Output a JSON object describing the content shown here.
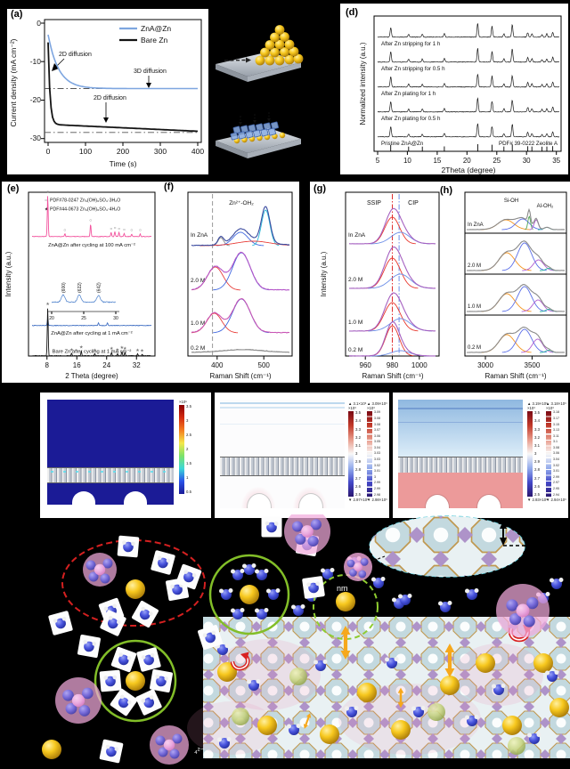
{
  "figure": {
    "panels": {
      "a": {
        "tag": "(a)",
        "ylabel": "Current density (mA cm⁻²)",
        "xlabel": "Time (s)",
        "yticks": [
          "0",
          "-10",
          "-20",
          "-30"
        ],
        "xticks": [
          "0",
          "100",
          "200",
          "300",
          "400"
        ],
        "ann_2d_top": "2D diffusion",
        "ann_3d": "3D diffusion",
        "ann_2d_bottom": "2D diffusion"
      },
      "d": {
        "tag": "(d)",
        "ylabel": "Normalized intensity (a.u.)",
        "xlabel": "2Theta (degree)",
        "xticks": [
          "5",
          "10",
          "15",
          "20",
          "25",
          "30",
          "35"
        ]
      },
      "e": {
        "tag": "(e)",
        "ylabel": "Intensity (a.u.)",
        "xlabel": "2 Theta (degree)",
        "xticks": [
          "8",
          "16",
          "24",
          "32"
        ],
        "legend1_marker": "○",
        "legend1": "PDF#78-0247 Zn₄(OH)₆SO₄·3H₂O",
        "legend2_marker": "★",
        "legend2": "PDF#44-0673 Zn₄(OH)₆SO₄·4H₂O"
      },
      "f": {
        "tag": "(f)",
        "top_label": "Zn²⁺-OH₂",
        "xticks": [
          "400",
          "500"
        ],
        "xlabel": "Raman Shift (cm⁻¹)"
      },
      "g": {
        "tag": "(g)",
        "label_ssip": "SSIP",
        "label_cip": "CIP",
        "ylabel": "Intensity (a.u.)",
        "xticks": [
          "960",
          "980",
          "1000"
        ],
        "xlabel": "Raman Shift (cm⁻¹)"
      },
      "h": {
        "tag": "(h)",
        "label_si": "Si-OH",
        "label_al": "Al-OH₂",
        "xticks": [
          "3000",
          "3500"
        ],
        "xlabel": "Raman Shift (cm⁻¹)"
      }
    },
    "simulations": [
      {
        "colorbars": [
          {
            "unit": "×10⁵",
            "ticks": [
              "3.5",
              "3",
              "2.5",
              "2",
              "1.5",
              "1",
              "0.5"
            ]
          }
        ]
      },
      {
        "colorbars": [
          {
            "max": "▲ 3.1×10³",
            "unit": "×10³",
            "ticks": [
              "3.5",
              "3.4",
              "3.3",
              "3.2",
              "3.1",
              "3",
              "2.9",
              "2.8",
              "2.7",
              "2.6",
              "2.5"
            ],
            "min": "▼ 2.97×10³"
          },
          {
            "max": "▲ 3.09×10³",
            "unit": "×10³",
            "ticks": [
              "3.09",
              "3.08",
              "3.08",
              "3.07",
              "3.06",
              "3.05",
              "3.04",
              "3.03",
              "3.03",
              "3.02",
              "3.01",
              "3",
              "2.99",
              "2.99",
              "2.98"
            ],
            "min": "▼ 2.98×10³"
          }
        ]
      },
      {
        "colorbars": [
          {
            "max": "▲ 3.19×10³",
            "unit": "×10³",
            "ticks": [
              "3.5",
              "3.4",
              "3.3",
              "3.2",
              "3.1",
              "3",
              "2.9",
              "2.8",
              "2.7",
              "2.6",
              "2.5"
            ],
            "min": "▼ 2.93×10³"
          },
          {
            "max": "▲ 3.18×10³",
            "unit": "×10³",
            "ticks": [
              "3.18",
              "3.17",
              "3.15",
              "3.13",
              "3.11",
              "3.1",
              "3.08",
              "3.06",
              "3.04",
              "3.02",
              "3.01",
              "2.99",
              "2.97",
              "2.95",
              "2.94"
            ],
            "min": "▼ 2.94×10³"
          }
        ]
      }
    ],
    "illustration": {
      "pore_label": "nm",
      "ion_label": "₄²⁻"
    }
  },
  "chart_data": [
    {
      "id": "a",
      "type": "line",
      "xlabel": "Time (s)",
      "ylabel": "Current density (mA cm⁻²)",
      "xlim": [
        0,
        400
      ],
      "ylim": [
        -31,
        0
      ],
      "series": [
        {
          "name": "ZnA@Zn",
          "color": "#7EA6E0",
          "i0": -3,
          "iInf": -17,
          "tau": 28,
          "drift": 0
        },
        {
          "name": "Bare Zn",
          "color": "#141414",
          "i0": -5,
          "iInf": -26.3,
          "tau": 5,
          "drift": -0.0045
        }
      ],
      "guides": [
        -17,
        -28.4
      ],
      "annotations": [
        "2D diffusion",
        "3D diffusion",
        "2D diffusion"
      ]
    },
    {
      "id": "d",
      "type": "xrd",
      "xlabel": "2Theta (degree)",
      "ylabel": "Normalized intensity (a.u.)",
      "xlim": [
        5,
        35.5
      ],
      "peaks": [
        [
          7.2,
          12
        ],
        [
          10.2,
          3.5
        ],
        [
          12.5,
          3.5
        ],
        [
          16.2,
          4.5
        ],
        [
          21.8,
          16
        ],
        [
          24.2,
          13
        ],
        [
          26.2,
          4
        ],
        [
          27.6,
          15
        ],
        [
          30.2,
          5.5
        ],
        [
          30.9,
          4
        ],
        [
          32.6,
          3
        ],
        [
          33.4,
          4
        ],
        [
          34.4,
          6
        ]
      ],
      "trace_labels": [
        "After Zn stripping for 1 h",
        "After Zn stripping for 0.5 h",
        "After Zn plating for 1 h",
        "After Zn plating for 0.5 h",
        "Pristine ZnA@Zn"
      ],
      "ref_label": "PDF# 39-0222 Zeolite A"
    },
    {
      "id": "e",
      "type": "xrd-multi",
      "xlabel": "2 Theta (degree)",
      "ylabel": "Intensity (a.u.)",
      "xlim": [
        4,
        36
      ],
      "traces": [
        {
          "label": "ZnA@Zn after cycling at 100 mA cm⁻²",
          "color": "#F2549E",
          "amp": 46,
          "marker": "○",
          "peaks": [
            [
              8.2,
              1
            ],
            [
              12.8,
              0.07
            ],
            [
              19.7,
              0.3
            ],
            [
              25.2,
              0.1
            ],
            [
              26.2,
              0.12
            ],
            [
              27.3,
              0.1
            ],
            [
              28.7,
              0.08
            ],
            [
              30.7,
              0.06
            ],
            [
              33,
              0.06
            ]
          ]
        },
        {
          "label": "ZnA@Zn after cycling at 1 mA cm⁻²",
          "color": "#4472C4",
          "amp": 8,
          "peaks": [
            [
              8.2,
              1
            ],
            [
              21.8,
              0.4
            ],
            [
              24.2,
              0.4
            ]
          ]
        },
        {
          "label": "Bare Zn after cycling at 1 mA cm⁻²",
          "color": "#141414",
          "amp": 54,
          "marker": "★",
          "peaks": [
            [
              8.2,
              1
            ],
            [
              14.6,
              0.05
            ],
            [
              17.2,
              0.1
            ],
            [
              20.8,
              0.04
            ],
            [
              25.3,
              0.07
            ],
            [
              26.9,
              0.05
            ],
            [
              28.1,
              0.09
            ],
            [
              28.9,
              0.07
            ],
            [
              32.3,
              0.04
            ],
            [
              33.5,
              0.03
            ]
          ]
        }
      ],
      "inset": {
        "xlim": [
          20,
          30
        ],
        "ticks": [
          20,
          25,
          30
        ],
        "labels": [
          "(600)",
          "(622)",
          "(642)"
        ],
        "peaks": [
          [
            21.8,
            1
          ],
          [
            24.3,
            1
          ],
          [
            27.3,
            0.9
          ]
        ]
      }
    },
    {
      "id": "f",
      "type": "raman",
      "xlabel": "Raman Shift (cm⁻¹)",
      "xlim": [
        345,
        555
      ],
      "dash_at": 390,
      "traces": [
        {
          "label": "In ZnA",
          "envelope": "#3A4A9F",
          "noise": 1.2,
          "comps": [
            [
              408,
              6,
              9,
              "#8A8A8A"
            ],
            [
              450,
              16,
              15,
              "#4169E1"
            ],
            [
              504,
              9,
              40,
              "#29B9D8"
            ],
            [
              478,
              36,
              5,
              "#E8413C"
            ]
          ]
        },
        {
          "label": "2.0 M",
          "envelope": "#B455C8",
          "noise": 1.4,
          "comps": [
            [
              396,
              17,
              26,
              "#E8413C"
            ],
            [
              452,
              19,
              42,
              "#4169E1"
            ]
          ]
        },
        {
          "label": "1.0 M",
          "envelope": "#C855B4",
          "noise": 1.4,
          "comps": [
            [
              394,
              16,
              22,
              "#E8413C"
            ],
            [
              452,
              19,
              38,
              "#4169E1"
            ]
          ]
        },
        {
          "label": "0.2 M",
          "envelope": "#909090",
          "noise": 1.3,
          "comps": [
            [
              455,
              40,
              3,
              "#AAAAAA"
            ]
          ]
        }
      ]
    },
    {
      "id": "g",
      "type": "raman",
      "xlabel": "Raman Shift (cm⁻¹)",
      "ylabel": "Intensity (a.u.)",
      "xlim": [
        948,
        1012
      ],
      "ssip_at": 980,
      "cip_at": 985,
      "traces": [
        {
          "label": "In ZnA",
          "envelope": "#A560C0",
          "noise": 0.5,
          "comps": [
            [
              980,
              5.5,
              30,
              "#E8362C"
            ],
            [
              986,
              7,
              13,
              "#6D8FE8"
            ]
          ]
        },
        {
          "label": "2.0 M",
          "envelope": "#A560C0",
          "noise": 0.5,
          "comps": [
            [
              980,
              6,
              34,
              "#E8362C"
            ],
            [
              986,
              7.5,
              16,
              "#6D8FE8"
            ]
          ]
        },
        {
          "label": "1.0 M",
          "envelope": "#A560C0",
          "noise": 0.5,
          "comps": [
            [
              980,
              6,
              32,
              "#E8362C"
            ],
            [
              986,
              7.5,
              14,
              "#6D8FE8"
            ]
          ]
        },
        {
          "label": "0.2 M",
          "envelope": "#A560C0",
          "noise": 0.5,
          "comps": [
            [
              980,
              5,
              34,
              "#E8362C"
            ],
            [
              986,
              7,
              6,
              "#6D8FE8"
            ]
          ]
        }
      ]
    },
    {
      "id": "h",
      "type": "raman-boxed",
      "xlabel": "Raman Shift (cm⁻¹)",
      "xlim": [
        2800,
        3850
      ],
      "traces": [
        {
          "label": "In ZnA",
          "envelope": "#8A8A8A",
          "noise": 0.5,
          "comps": [
            [
              3220,
              85,
              11,
              "#F5941E"
            ],
            [
              3400,
              70,
              12,
              "#5B6FE8"
            ],
            [
              3470,
              14,
              15,
              "#56A556"
            ],
            [
              3545,
              22,
              11,
              "#B05FD0"
            ],
            [
              3660,
              30,
              2.5,
              "#2BB5A0"
            ]
          ]
        },
        {
          "label": "2.0 M",
          "envelope": "#8A8A8A",
          "noise": 0.5,
          "comps": [
            [
              3230,
              85,
              20,
              "#F5941E"
            ],
            [
              3420,
              75,
              31,
              "#5B6FE8"
            ],
            [
              3570,
              55,
              12,
              "#B05FD0"
            ],
            [
              3680,
              30,
              2.5,
              "#2BB5A0"
            ]
          ]
        },
        {
          "label": "1.0 M",
          "envelope": "#8A8A8A",
          "noise": 0.5,
          "comps": [
            [
              3230,
              85,
              20,
              "#F5941E"
            ],
            [
              3420,
              75,
              28,
              "#5B6FE8"
            ],
            [
              3565,
              55,
              13,
              "#B05FD0"
            ],
            [
              3680,
              30,
              2.5,
              "#2BB5A0"
            ]
          ]
        },
        {
          "label": "0.2 M",
          "envelope": "#8A8A8A",
          "noise": 0.5,
          "comps": [
            [
              3230,
              85,
              20,
              "#F5941E"
            ],
            [
              3420,
              75,
              26,
              "#5B6FE8"
            ],
            [
              3560,
              55,
              15,
              "#B05FD0"
            ],
            [
              3680,
              30,
              2.5,
              "#2BB5A0"
            ]
          ]
        }
      ]
    }
  ]
}
